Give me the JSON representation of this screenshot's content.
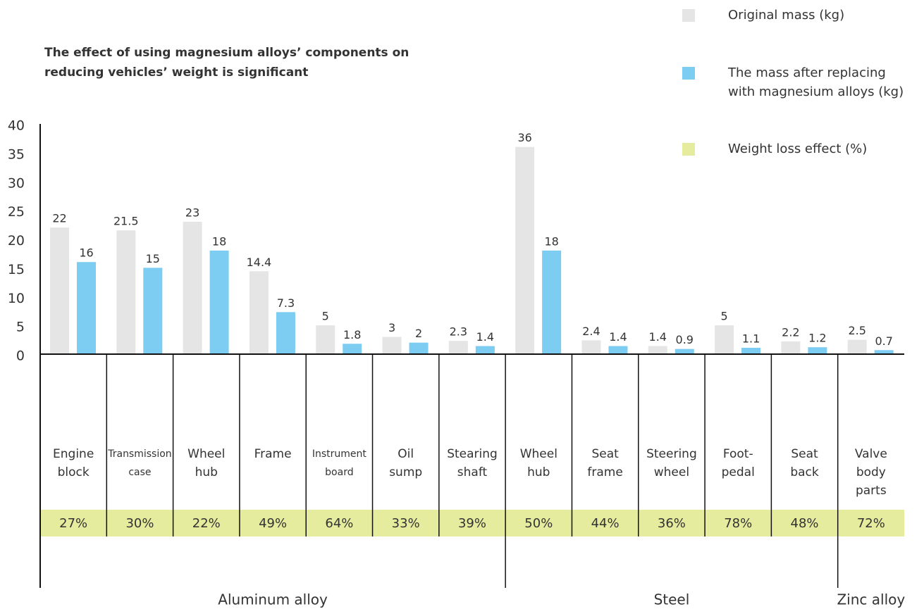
{
  "chart_data": {
    "type": "bar",
    "title": "The effect of using magnesium alloys’ components on\nreducing vehicles’ weight is significant",
    "categories": [
      "Engine\nblock",
      "Transmission\ncase",
      "Wheel\nhub",
      "Frame",
      "Instrument\nboard",
      "Oil\nsump",
      "Stearing\nshaft",
      "Wheel\nhub",
      "Seat\nframe",
      "Steering\nwheel",
      "Foot-\npedal",
      "Seat\nback",
      "Valve\nbody\nparts"
    ],
    "series": [
      {
        "name": "Original mass (kg)",
        "color": "#e5e5e5",
        "values": [
          22,
          21.5,
          23,
          14.4,
          5,
          3,
          2.3,
          36,
          2.4,
          1.4,
          5,
          2.2,
          2.5
        ]
      },
      {
        "name": "The mass after replacing\nwith magnesium alloys (kg)",
        "color": "#7dcdf2",
        "values": [
          16,
          15,
          18,
          7.3,
          1.8,
          2,
          1.4,
          18,
          1.4,
          0.9,
          1.1,
          1.2,
          0.7
        ]
      }
    ],
    "weight_loss": {
      "name": "Weight loss effect (%)",
      "color": "#e6ec9e",
      "values": [
        27,
        30,
        22,
        49,
        64,
        33,
        39,
        50,
        44,
        36,
        78,
        48,
        72
      ],
      "value_labels": [
        "27%",
        "30%",
        "22%",
        "49%",
        "64%",
        "33%",
        "39%",
        "50%",
        "44%",
        "36%",
        "78%",
        "48%",
        "72%"
      ]
    },
    "groups": [
      {
        "name": "Aluminum alloy",
        "count": 7
      },
      {
        "name": "Steel",
        "count": 5
      },
      {
        "name": "Zinc alloy",
        "count": 1
      }
    ],
    "ylim": [
      0,
      40
    ],
    "yticks": [
      0,
      5,
      10,
      15,
      20,
      25,
      30,
      35,
      40
    ],
    "grid": false
  }
}
